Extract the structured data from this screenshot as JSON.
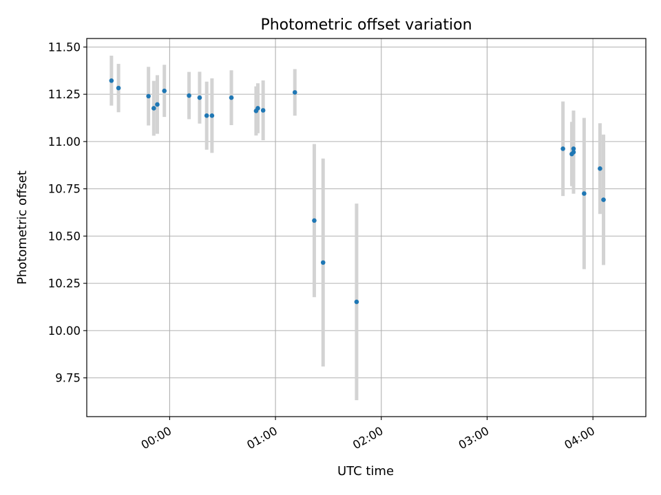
{
  "chart_data": {
    "type": "scatter",
    "title": "Photometric offset variation",
    "xlabel": "UTC time",
    "ylabel": "Photometric offset",
    "xlim": [
      "23:13",
      "04:30"
    ],
    "ylim": [
      9.545,
      11.545
    ],
    "x_ticks": [
      "00:00",
      "01:00",
      "02:00",
      "03:00",
      "04:00"
    ],
    "y_ticks": [
      9.75,
      10.0,
      10.25,
      10.5,
      10.75,
      11.0,
      11.25,
      11.5
    ],
    "y_tick_labels": [
      "9.75",
      "10.00",
      "10.25",
      "10.50",
      "10.75",
      "11.00",
      "11.25",
      "11.50"
    ],
    "grid": true,
    "errorbar_color": "#d3d3d3",
    "marker_color": "#1f77b4",
    "points": [
      {
        "x": "23:27",
        "y": 11.322,
        "err": 0.132
      },
      {
        "x": "23:31",
        "y": 11.283,
        "err": 0.128
      },
      {
        "x": "23:48",
        "y": 11.24,
        "err": 0.155
      },
      {
        "x": "23:51",
        "y": 11.176,
        "err": 0.145
      },
      {
        "x": "23:53",
        "y": 11.196,
        "err": 0.155
      },
      {
        "x": "23:57",
        "y": 11.268,
        "err": 0.138
      },
      {
        "x": "00:11",
        "y": 11.243,
        "err": 0.125
      },
      {
        "x": "00:17",
        "y": 11.232,
        "err": 0.137
      },
      {
        "x": "00:21",
        "y": 11.137,
        "err": 0.18
      },
      {
        "x": "00:24",
        "y": 11.137,
        "err": 0.197
      },
      {
        "x": "00:35",
        "y": 11.232,
        "err": 0.145
      },
      {
        "x": "00:49",
        "y": 11.162,
        "err": 0.13
      },
      {
        "x": "00:50",
        "y": 11.176,
        "err": 0.132
      },
      {
        "x": "00:53",
        "y": 11.165,
        "err": 0.158
      },
      {
        "x": "01:11",
        "y": 11.26,
        "err": 0.123
      },
      {
        "x": "01:22",
        "y": 10.582,
        "err": 0.405
      },
      {
        "x": "01:27",
        "y": 10.36,
        "err": 0.55
      },
      {
        "x": "01:46",
        "y": 10.152,
        "err": 0.52
      },
      {
        "x": "03:43",
        "y": 10.962,
        "err": 0.25
      },
      {
        "x": "03:48",
        "y": 10.934,
        "err": 0.17
      },
      {
        "x": "03:49",
        "y": 10.962,
        "err": 0.2
      },
      {
        "x": "03:49",
        "y": 10.944,
        "err": 0.22
      },
      {
        "x": "03:55",
        "y": 10.725,
        "err": 0.4
      },
      {
        "x": "04:04",
        "y": 10.857,
        "err": 0.24
      },
      {
        "x": "04:06",
        "y": 10.692,
        "err": 0.345
      }
    ]
  }
}
